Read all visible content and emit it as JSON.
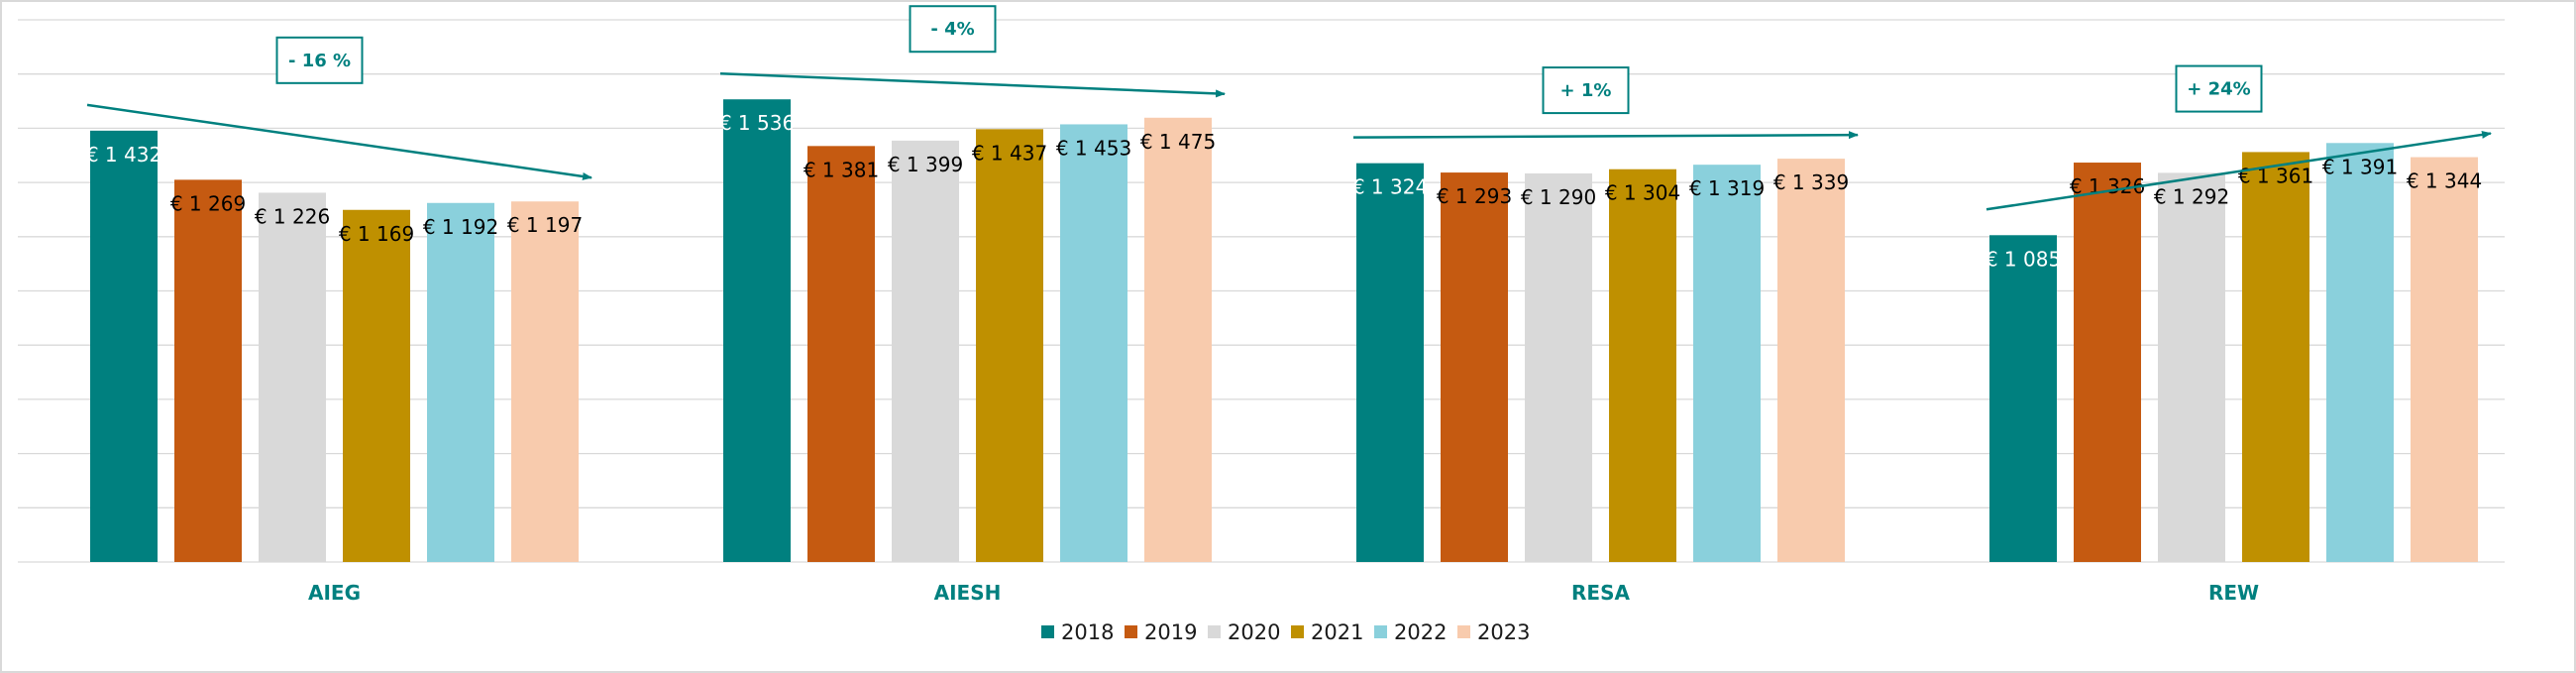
{
  "chart_data": {
    "type": "bar",
    "categories": [
      "AIEG",
      "AIESH",
      "RESA",
      "REW"
    ],
    "series": [
      {
        "name": "2018",
        "values": [
          1432,
          1536,
          1324,
          1085
        ],
        "labels": [
          "€ 1 432",
          "€ 1 536",
          "€ 1 324",
          "€ 1 085"
        ],
        "color": "#00807F",
        "label_color": "#ffffff"
      },
      {
        "name": "2019",
        "values": [
          1269,
          1381,
          1293,
          1326
        ],
        "labels": [
          "€ 1 269",
          "€ 1 381",
          "€ 1 293",
          "€ 1 326"
        ],
        "color": "#C55A11",
        "label_color": "#000000"
      },
      {
        "name": "2020",
        "values": [
          1226,
          1399,
          1290,
          1292
        ],
        "labels": [
          "€ 1 226",
          "€ 1 399",
          "€ 1 290",
          "€ 1 292"
        ],
        "color": "#D9D9D9",
        "label_color": "#000000"
      },
      {
        "name": "2021",
        "values": [
          1169,
          1437,
          1304,
          1361
        ],
        "labels": [
          "€ 1 169",
          "€ 1 437",
          "€ 1 304",
          "€ 1 361"
        ],
        "color": "#BF9000",
        "label_color": "#000000"
      },
      {
        "name": "2022",
        "values": [
          1192,
          1453,
          1319,
          1391
        ],
        "labels": [
          "€ 1 192",
          "€ 1 453",
          "€ 1 319",
          "€ 1 391"
        ],
        "color": "#8AD0DC",
        "label_color": "#000000"
      },
      {
        "name": "2023",
        "values": [
          1197,
          1475,
          1339,
          1344
        ],
        "labels": [
          "€ 1 197",
          "€ 1 475",
          "€ 1 339",
          "€ 1 344"
        ],
        "color": "#F8CBAD",
        "label_color": "#000000"
      }
    ],
    "annotations": [
      {
        "category": "AIEG",
        "text": "- 16 %"
      },
      {
        "category": "AIESH",
        "text": "- 4%"
      },
      {
        "category": "RESA",
        "text": "+ 1%"
      },
      {
        "category": "REW",
        "text": "+ 24%"
      }
    ],
    "ylim": [
      0,
      1800
    ],
    "grid": true,
    "legend": "bottom-center",
    "title": "",
    "xlabel": "",
    "ylabel": "",
    "colors": {
      "category_label": "#00807F",
      "arrow": "#00807F",
      "grid": "#D9D9D9"
    }
  }
}
